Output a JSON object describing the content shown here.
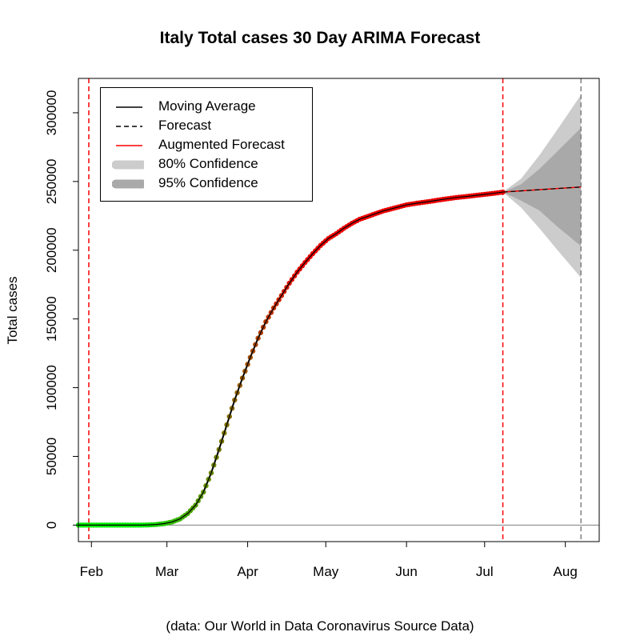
{
  "chart_data": {
    "type": "line",
    "title": "Italy Total cases 30 Day ARIMA Forecast",
    "ylabel": "Total cases",
    "xlabel": "",
    "caption": "(data: Our World in Data Coronavirus Source Data)",
    "ylim": [
      -12000,
      325000
    ],
    "xlim": [
      "2020-01-27",
      "2020-08-14"
    ],
    "yticks": [
      0,
      50000,
      100000,
      150000,
      200000,
      250000,
      300000
    ],
    "ytick_labels": [
      "0",
      "50000",
      "100000",
      "150000",
      "200000",
      "250000",
      "300000"
    ],
    "xticks": [
      "2020-02-01",
      "2020-03-01",
      "2020-04-01",
      "2020-05-01",
      "2020-06-01",
      "2020-07-01",
      "2020-08-01"
    ],
    "xtick_labels": [
      "Feb",
      "Mar",
      "Apr",
      "May",
      "Jun",
      "Jul",
      "Aug"
    ],
    "vlines": [
      {
        "x": "2020-01-31",
        "color": "#ff0000",
        "style": "dashed"
      },
      {
        "x": "2020-07-08",
        "color": "#ff0000",
        "style": "dashed"
      },
      {
        "x": "2020-08-07",
        "color": "#808080",
        "style": "dashed"
      }
    ],
    "hline": {
      "y": 0,
      "color": "#808080"
    },
    "observed": [
      [
        "2020-01-27",
        0
      ],
      [
        "2020-02-20",
        3
      ],
      [
        "2020-02-23",
        150
      ],
      [
        "2020-02-26",
        450
      ],
      [
        "2020-02-29",
        1100
      ],
      [
        "2020-03-03",
        2300
      ],
      [
        "2020-03-06",
        4500
      ],
      [
        "2020-03-09",
        8500
      ],
      [
        "2020-03-12",
        14500
      ],
      [
        "2020-03-15",
        24000
      ],
      [
        "2020-03-18",
        38000
      ],
      [
        "2020-03-21",
        55000
      ],
      [
        "2020-03-24",
        73000
      ],
      [
        "2020-03-27",
        91000
      ],
      [
        "2020-03-30",
        107000
      ],
      [
        "2020-04-02",
        122000
      ],
      [
        "2020-04-05",
        136000
      ],
      [
        "2020-04-08",
        148000
      ],
      [
        "2020-04-11",
        158000
      ],
      [
        "2020-04-14",
        167000
      ],
      [
        "2020-04-17",
        176000
      ],
      [
        "2020-04-20",
        184000
      ],
      [
        "2020-04-23",
        191000
      ],
      [
        "2020-04-26",
        197500
      ],
      [
        "2020-04-29",
        203500
      ],
      [
        "2020-05-02",
        208500
      ],
      [
        "2020-05-05",
        212000
      ],
      [
        "2020-05-08",
        216000
      ],
      [
        "2020-05-11",
        219500
      ],
      [
        "2020-05-14",
        222500
      ],
      [
        "2020-05-17",
        224500
      ],
      [
        "2020-05-20",
        226500
      ],
      [
        "2020-05-23",
        228500
      ],
      [
        "2020-05-26",
        230000
      ],
      [
        "2020-05-29",
        231500
      ],
      [
        "2020-06-01",
        233000
      ],
      [
        "2020-06-05",
        234200
      ],
      [
        "2020-06-10",
        235500
      ],
      [
        "2020-06-15",
        237000
      ],
      [
        "2020-06-20",
        238300
      ],
      [
        "2020-06-25",
        239300
      ],
      [
        "2020-06-30",
        240400
      ],
      [
        "2020-07-05",
        241500
      ],
      [
        "2020-07-08",
        242300
      ]
    ],
    "forecast": [
      [
        "2020-07-08",
        242300
      ],
      [
        "2020-08-07",
        246000
      ]
    ],
    "confidence_80": {
      "upper": [
        [
          "2020-07-08",
          242300
        ],
        [
          "2020-07-15",
          248000
        ],
        [
          "2020-07-22",
          259000
        ],
        [
          "2020-07-29",
          272000
        ],
        [
          "2020-08-07",
          289000
        ]
      ],
      "lower": [
        [
          "2020-07-08",
          242300
        ],
        [
          "2020-07-15",
          236000
        ],
        [
          "2020-07-22",
          229000
        ],
        [
          "2020-07-29",
          217000
        ],
        [
          "2020-08-07",
          203000
        ]
      ]
    },
    "confidence_95": {
      "upper": [
        [
          "2020-07-08",
          242300
        ],
        [
          "2020-07-15",
          252000
        ],
        [
          "2020-07-22",
          269000
        ],
        [
          "2020-07-29",
          288000
        ],
        [
          "2020-08-07",
          313000
        ]
      ],
      "lower": [
        [
          "2020-07-08",
          242300
        ],
        [
          "2020-07-15",
          231000
        ],
        [
          "2020-07-22",
          216000
        ],
        [
          "2020-07-29",
          200000
        ],
        [
          "2020-08-07",
          180000
        ]
      ]
    },
    "colors": {
      "moving_average": "#000000",
      "forecast": "#000000",
      "augmented_forecast": "#ff0000",
      "confidence_80": "#bebebe",
      "confidence_95": "#a6a6a6",
      "points_start": "#00ee00",
      "points_end": "#ee0000"
    },
    "legend": {
      "position": "top-left",
      "entries": [
        {
          "label": "Moving Average",
          "symbol": "line-solid"
        },
        {
          "label": "Forecast",
          "symbol": "line-dashed"
        },
        {
          "label": "Augmented Forecast",
          "symbol": "line-red"
        },
        {
          "label": "80% Confidence",
          "symbol": "band-light"
        },
        {
          "label": "95% Confidence",
          "symbol": "band-dark"
        }
      ]
    }
  }
}
